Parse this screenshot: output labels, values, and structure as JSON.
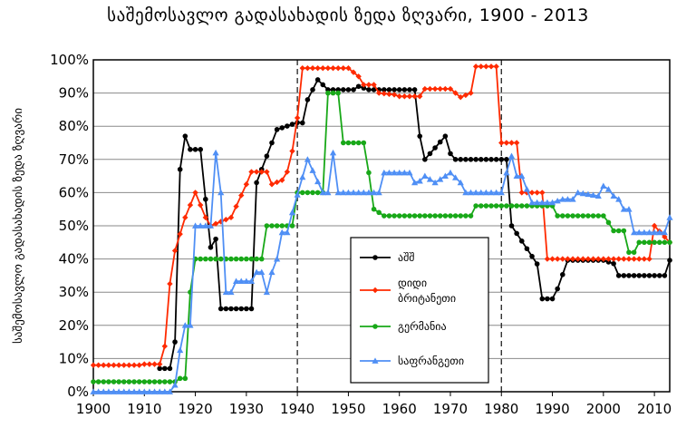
{
  "chart_data": {
    "type": "line",
    "title": "საშემოსავლო გადასახადის ზედა ზღვარი, 1900 - 2013",
    "ylabel": "საშემოსავლო გადასახადის ზედა ზღვარი",
    "xlabel": "",
    "xlim": [
      1900,
      2013
    ],
    "ylim": [
      0,
      100
    ],
    "x_ticks": [
      "1900",
      "1910",
      "1920",
      "1930",
      "1940",
      "1950",
      "1960",
      "1970",
      "1980",
      "1990",
      "2000",
      "2010"
    ],
    "y_ticks": [
      "0%",
      "10%",
      "20%",
      "30%",
      "40%",
      "50%",
      "60%",
      "70%",
      "80%",
      "90%",
      "100%"
    ],
    "grid": "horizontal lines at every 10%; dashed vertical lines at 1940 and 1980",
    "legend_position": "center-right",
    "series": [
      {
        "name": "აშშ",
        "color": "#000000",
        "marker": "circle",
        "points": [
          [
            1913,
            7
          ],
          [
            1915,
            7
          ],
          [
            1916,
            15
          ],
          [
            1917,
            67
          ],
          [
            1918,
            77
          ],
          [
            1919,
            73
          ],
          [
            1921,
            73
          ],
          [
            1922,
            58
          ],
          [
            1923,
            43.5
          ],
          [
            1924,
            46
          ],
          [
            1925,
            25
          ],
          [
            1931,
            25
          ],
          [
            1932,
            63
          ],
          [
            1936,
            79
          ],
          [
            1940,
            81.1
          ],
          [
            1941,
            81
          ],
          [
            1942,
            88
          ],
          [
            1944,
            94
          ],
          [
            1946,
            91
          ],
          [
            1950,
            91
          ],
          [
            1951,
            91
          ],
          [
            1952,
            92
          ],
          [
            1954,
            91
          ],
          [
            1963,
            91
          ],
          [
            1964,
            77
          ],
          [
            1965,
            70
          ],
          [
            1968,
            75.25
          ],
          [
            1969,
            77
          ],
          [
            1970,
            71.75
          ],
          [
            1971,
            70
          ],
          [
            1981,
            70
          ],
          [
            1982,
            50
          ],
          [
            1987,
            38.5
          ],
          [
            1988,
            28
          ],
          [
            1990,
            28
          ],
          [
            1991,
            31
          ],
          [
            1993,
            39.6
          ],
          [
            2000,
            39.6
          ],
          [
            2001,
            39.1
          ],
          [
            2002,
            38.6
          ],
          [
            2003,
            35
          ],
          [
            2012,
            35
          ],
          [
            2013,
            39.6
          ]
        ]
      },
      {
        "name": "დიდი ბრიტანეთი",
        "color": "#ff2a00",
        "marker": "diamond",
        "points": [
          [
            1900,
            8
          ],
          [
            1908,
            8
          ],
          [
            1909,
            8
          ],
          [
            1910,
            8.3
          ],
          [
            1913,
            8.3
          ],
          [
            1914,
            13.7
          ],
          [
            1915,
            32.5
          ],
          [
            1916,
            42.5
          ],
          [
            1918,
            52.5
          ],
          [
            1920,
            60
          ],
          [
            1922,
            52.5
          ],
          [
            1923,
            50
          ],
          [
            1927,
            52.5
          ],
          [
            1930,
            62.5
          ],
          [
            1931,
            66.25
          ],
          [
            1934,
            66.25
          ],
          [
            1935,
            62.5
          ],
          [
            1937,
            63.75
          ],
          [
            1938,
            66.25
          ],
          [
            1939,
            72.5
          ],
          [
            1940,
            82.5
          ],
          [
            1941,
            97.5
          ],
          [
            1950,
            97.5
          ],
          [
            1952,
            95
          ],
          [
            1953,
            92.5
          ],
          [
            1955,
            92.5
          ],
          [
            1956,
            90
          ],
          [
            1959,
            89.5
          ],
          [
            1960,
            89
          ],
          [
            1964,
            89
          ],
          [
            1965,
            91.25
          ],
          [
            1970,
            91.25
          ],
          [
            1971,
            90
          ],
          [
            1972,
            88.75
          ],
          [
            1974,
            90
          ],
          [
            1975,
            98
          ],
          [
            1979,
            98
          ],
          [
            1980,
            75
          ],
          [
            1983,
            75
          ],
          [
            1984,
            60
          ],
          [
            1988,
            60
          ],
          [
            1989,
            40
          ],
          [
            2009,
            40
          ],
          [
            2010,
            50
          ],
          [
            2013,
            45
          ]
        ]
      },
      {
        "name": "გერმანია",
        "color": "#18a818",
        "marker": "circle",
        "points": [
          [
            1900,
            3
          ],
          [
            1916,
            3
          ],
          [
            1917,
            4
          ],
          [
            1918,
            4
          ],
          [
            1919,
            30
          ],
          [
            1920,
            40
          ],
          [
            1933,
            40
          ],
          [
            1934,
            50
          ],
          [
            1939,
            50
          ],
          [
            1940,
            60
          ],
          [
            1945,
            60
          ],
          [
            1946,
            90
          ],
          [
            1948,
            90
          ],
          [
            1949,
            75
          ],
          [
            1953,
            75
          ],
          [
            1954,
            66
          ],
          [
            1955,
            55
          ],
          [
            1957,
            53
          ],
          [
            1974,
            53
          ],
          [
            1975,
            56
          ],
          [
            1990,
            56
          ],
          [
            1991,
            53
          ],
          [
            2000,
            53
          ],
          [
            2001,
            51
          ],
          [
            2002,
            48.5
          ],
          [
            2004,
            48.5
          ],
          [
            2005,
            42
          ],
          [
            2006,
            42
          ],
          [
            2007,
            45
          ],
          [
            2013,
            45
          ]
        ]
      },
      {
        "name": "საფრანგეთი",
        "color": "#4f8ff5",
        "marker": "triangle",
        "points": [
          [
            1900,
            0
          ],
          [
            1915,
            0
          ],
          [
            1916,
            2
          ],
          [
            1917,
            12.5
          ],
          [
            1918,
            20
          ],
          [
            1919,
            20
          ],
          [
            1920,
            50
          ],
          [
            1921,
            50
          ],
          [
            1922,
            50
          ],
          [
            1923,
            50
          ],
          [
            1924,
            72
          ],
          [
            1925,
            60
          ],
          [
            1926,
            30
          ],
          [
            1927,
            30
          ],
          [
            1928,
            33.3
          ],
          [
            1931,
            33.3
          ],
          [
            1932,
            36
          ],
          [
            1933,
            36
          ],
          [
            1934,
            30
          ],
          [
            1935,
            36
          ],
          [
            1936,
            40
          ],
          [
            1937,
            48
          ],
          [
            1938,
            48
          ],
          [
            1939,
            54
          ],
          [
            1942,
            70
          ],
          [
            1945,
            60
          ],
          [
            1946,
            60
          ],
          [
            1947,
            72
          ],
          [
            1948,
            60
          ],
          [
            1956,
            60
          ],
          [
            1957,
            66
          ],
          [
            1962,
            66
          ],
          [
            1963,
            63
          ],
          [
            1964,
            63.5
          ],
          [
            1965,
            65
          ],
          [
            1967,
            63
          ],
          [
            1969,
            65
          ],
          [
            1970,
            66
          ],
          [
            1972,
            63
          ],
          [
            1973,
            60
          ],
          [
            1975,
            60
          ],
          [
            1980,
            60
          ],
          [
            1981,
            66
          ],
          [
            1982,
            71
          ],
          [
            1983,
            65
          ],
          [
            1984,
            65
          ],
          [
            1986,
            57
          ],
          [
            1990,
            57
          ],
          [
            1992,
            58
          ],
          [
            1994,
            58
          ],
          [
            1995,
            60
          ],
          [
            1999,
            59
          ],
          [
            2000,
            62
          ],
          [
            2001,
            61
          ],
          [
            2002,
            59
          ],
          [
            2003,
            58
          ],
          [
            2004,
            55
          ],
          [
            2005,
            55
          ],
          [
            2006,
            48
          ],
          [
            2012,
            48
          ],
          [
            2013,
            52.5
          ]
        ]
      }
    ]
  }
}
